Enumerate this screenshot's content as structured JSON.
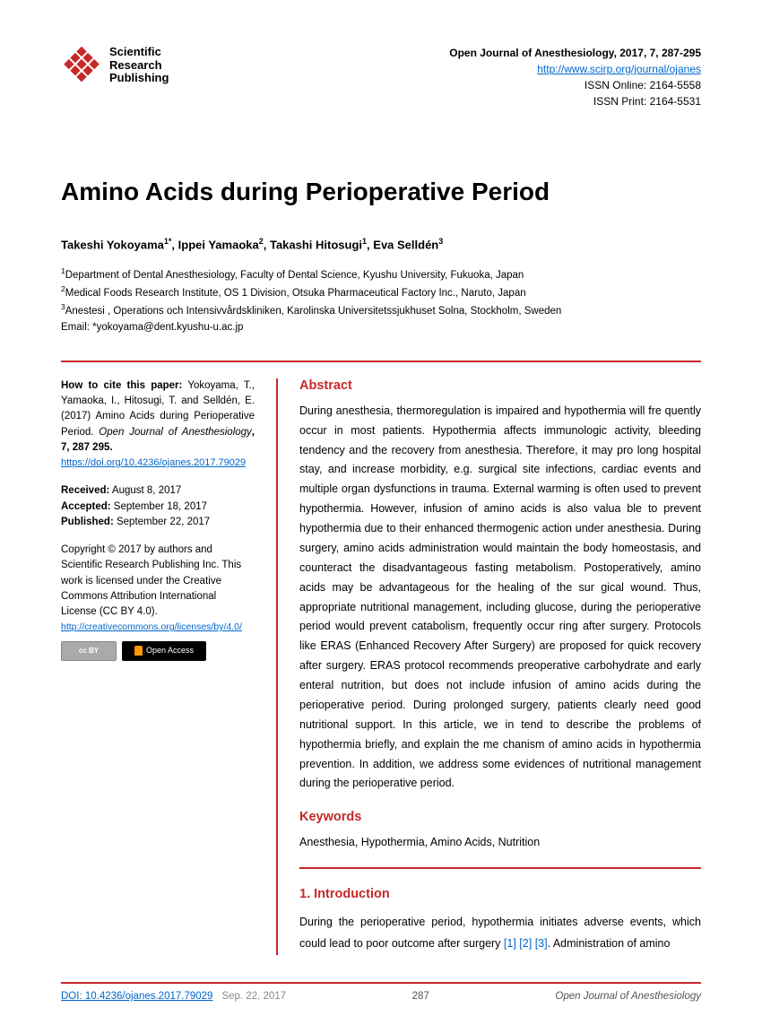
{
  "header": {
    "publisher_line1": "Scientific",
    "publisher_line2": "Research",
    "publisher_line3": "Publishing",
    "journal_ref": "Open Journal of Anesthesiology, 2017, 7, 287-295",
    "journal_url": "http://www.scirp.org/journal/ojanes",
    "issn_online": "ISSN Online: 2164-5558",
    "issn_print": "ISSN Print: 2164-5531",
    "logo_color": "#c62828"
  },
  "title": "Amino Acids during Perioperative Period",
  "authors_html": "Takeshi Yokoyama<sup>1*</sup>, Ippei Yamaoka<sup>2</sup>, Takashi Hitosugi<sup>1</sup>, Eva Selldén<sup>3</sup>",
  "affiliations": [
    "<sup>1</sup>Department of Dental Anesthesiology, Faculty of Dental Science, Kyushu University, Fukuoka, Japan",
    "<sup>2</sup>Medical Foods Research Institute, OS 1 Division, Otsuka Pharmaceutical Factory Inc., Naruto, Japan",
    "<sup>3</sup>Anestesi , Operations och Intensivvårdskliniken, Karolinska Universitetssjukhuset Solna, Stockholm, Sweden",
    " Email: *yokoyama@dent.kyushu-u.ac.jp"
  ],
  "cite": {
    "label": "How to cite this paper:",
    "text": "Yokoyama, T., Yamaoka, I., Hitosugi, T. and Selldén, E. (2017) Amino Acids during Perioperative Period.",
    "journal": "Open Journal of Anesthesiology",
    "vol": ", 7, 287 295.",
    "doi": "https://doi.org/10.4236/ojanes.2017.79029"
  },
  "dates": {
    "received_label": "Received:",
    "received": " August 8, 2017",
    "accepted_label": "Accepted:",
    "accepted": " September 18, 2017",
    "published_label": "Published:",
    "published": " September 22, 2017"
  },
  "copyright": {
    "text": "Copyright © 2017 by authors and Scientific Research Publishing Inc. This work is licensed under the Creative Commons Attribution International License (CC BY 4.0).",
    "link": "http://creativecommons.org/licenses/by/4.0/",
    "cc_label": "cc   BY",
    "oa_label": "Open Access"
  },
  "abstract": {
    "heading": "Abstract",
    "text": "During anesthesia, thermoregulation is impaired and hypothermia will fre quently occur in most patients. Hypothermia affects immunologic activity, bleeding tendency and the recovery from anesthesia. Therefore, it may pro long hospital stay, and increase morbidity, e.g. surgical site infections, cardiac events and multiple organ dysfunctions in trauma. External warming is often used to prevent hypothermia. However, infusion of amino acids is also valua ble to prevent hypothermia due to their enhanced thermogenic action under anesthesia. During surgery, amino acids administration would maintain the body homeostasis, and counteract the disadvantageous fasting metabolism. Postoperatively, amino acids may be advantageous for the healing of the sur gical wound. Thus, appropriate nutritional management, including glucose, during the perioperative period would prevent catabolism, frequently occur ring after surgery. Protocols like ERAS (Enhanced Recovery After Surgery) are proposed for quick recovery after surgery. ERAS protocol recommends preoperative carbohydrate and early enteral nutrition, but does not include infusion of amino acids during the perioperative period. During prolonged surgery, patients clearly need good nutritional support. In this article, we in tend to describe the problems of hypothermia briefly, and explain the me chanism of amino acids in hypothermia prevention. In addition, we address some evidences of nutritional management during the perioperative period."
  },
  "keywords": {
    "heading": "Keywords",
    "text": "Anesthesia, Hypothermia, Amino Acids, Nutrition"
  },
  "intro": {
    "heading": "1. Introduction",
    "text_pre": "During the perioperative period, hypothermia initiates adverse events, which could lead to poor outcome after surgery ",
    "ref1": "[1]",
    "ref2": "[2]",
    "ref3": "[3]",
    "text_post": ". Administration of amino"
  },
  "footer": {
    "doi": "DOI: 10.4236/ojanes.2017.79029",
    "date": "Sep. 22, 2017",
    "page": "287",
    "journal": "Open Journal of Anesthesiology"
  },
  "colors": {
    "accent": "#c62828",
    "link": "#0066cc"
  }
}
